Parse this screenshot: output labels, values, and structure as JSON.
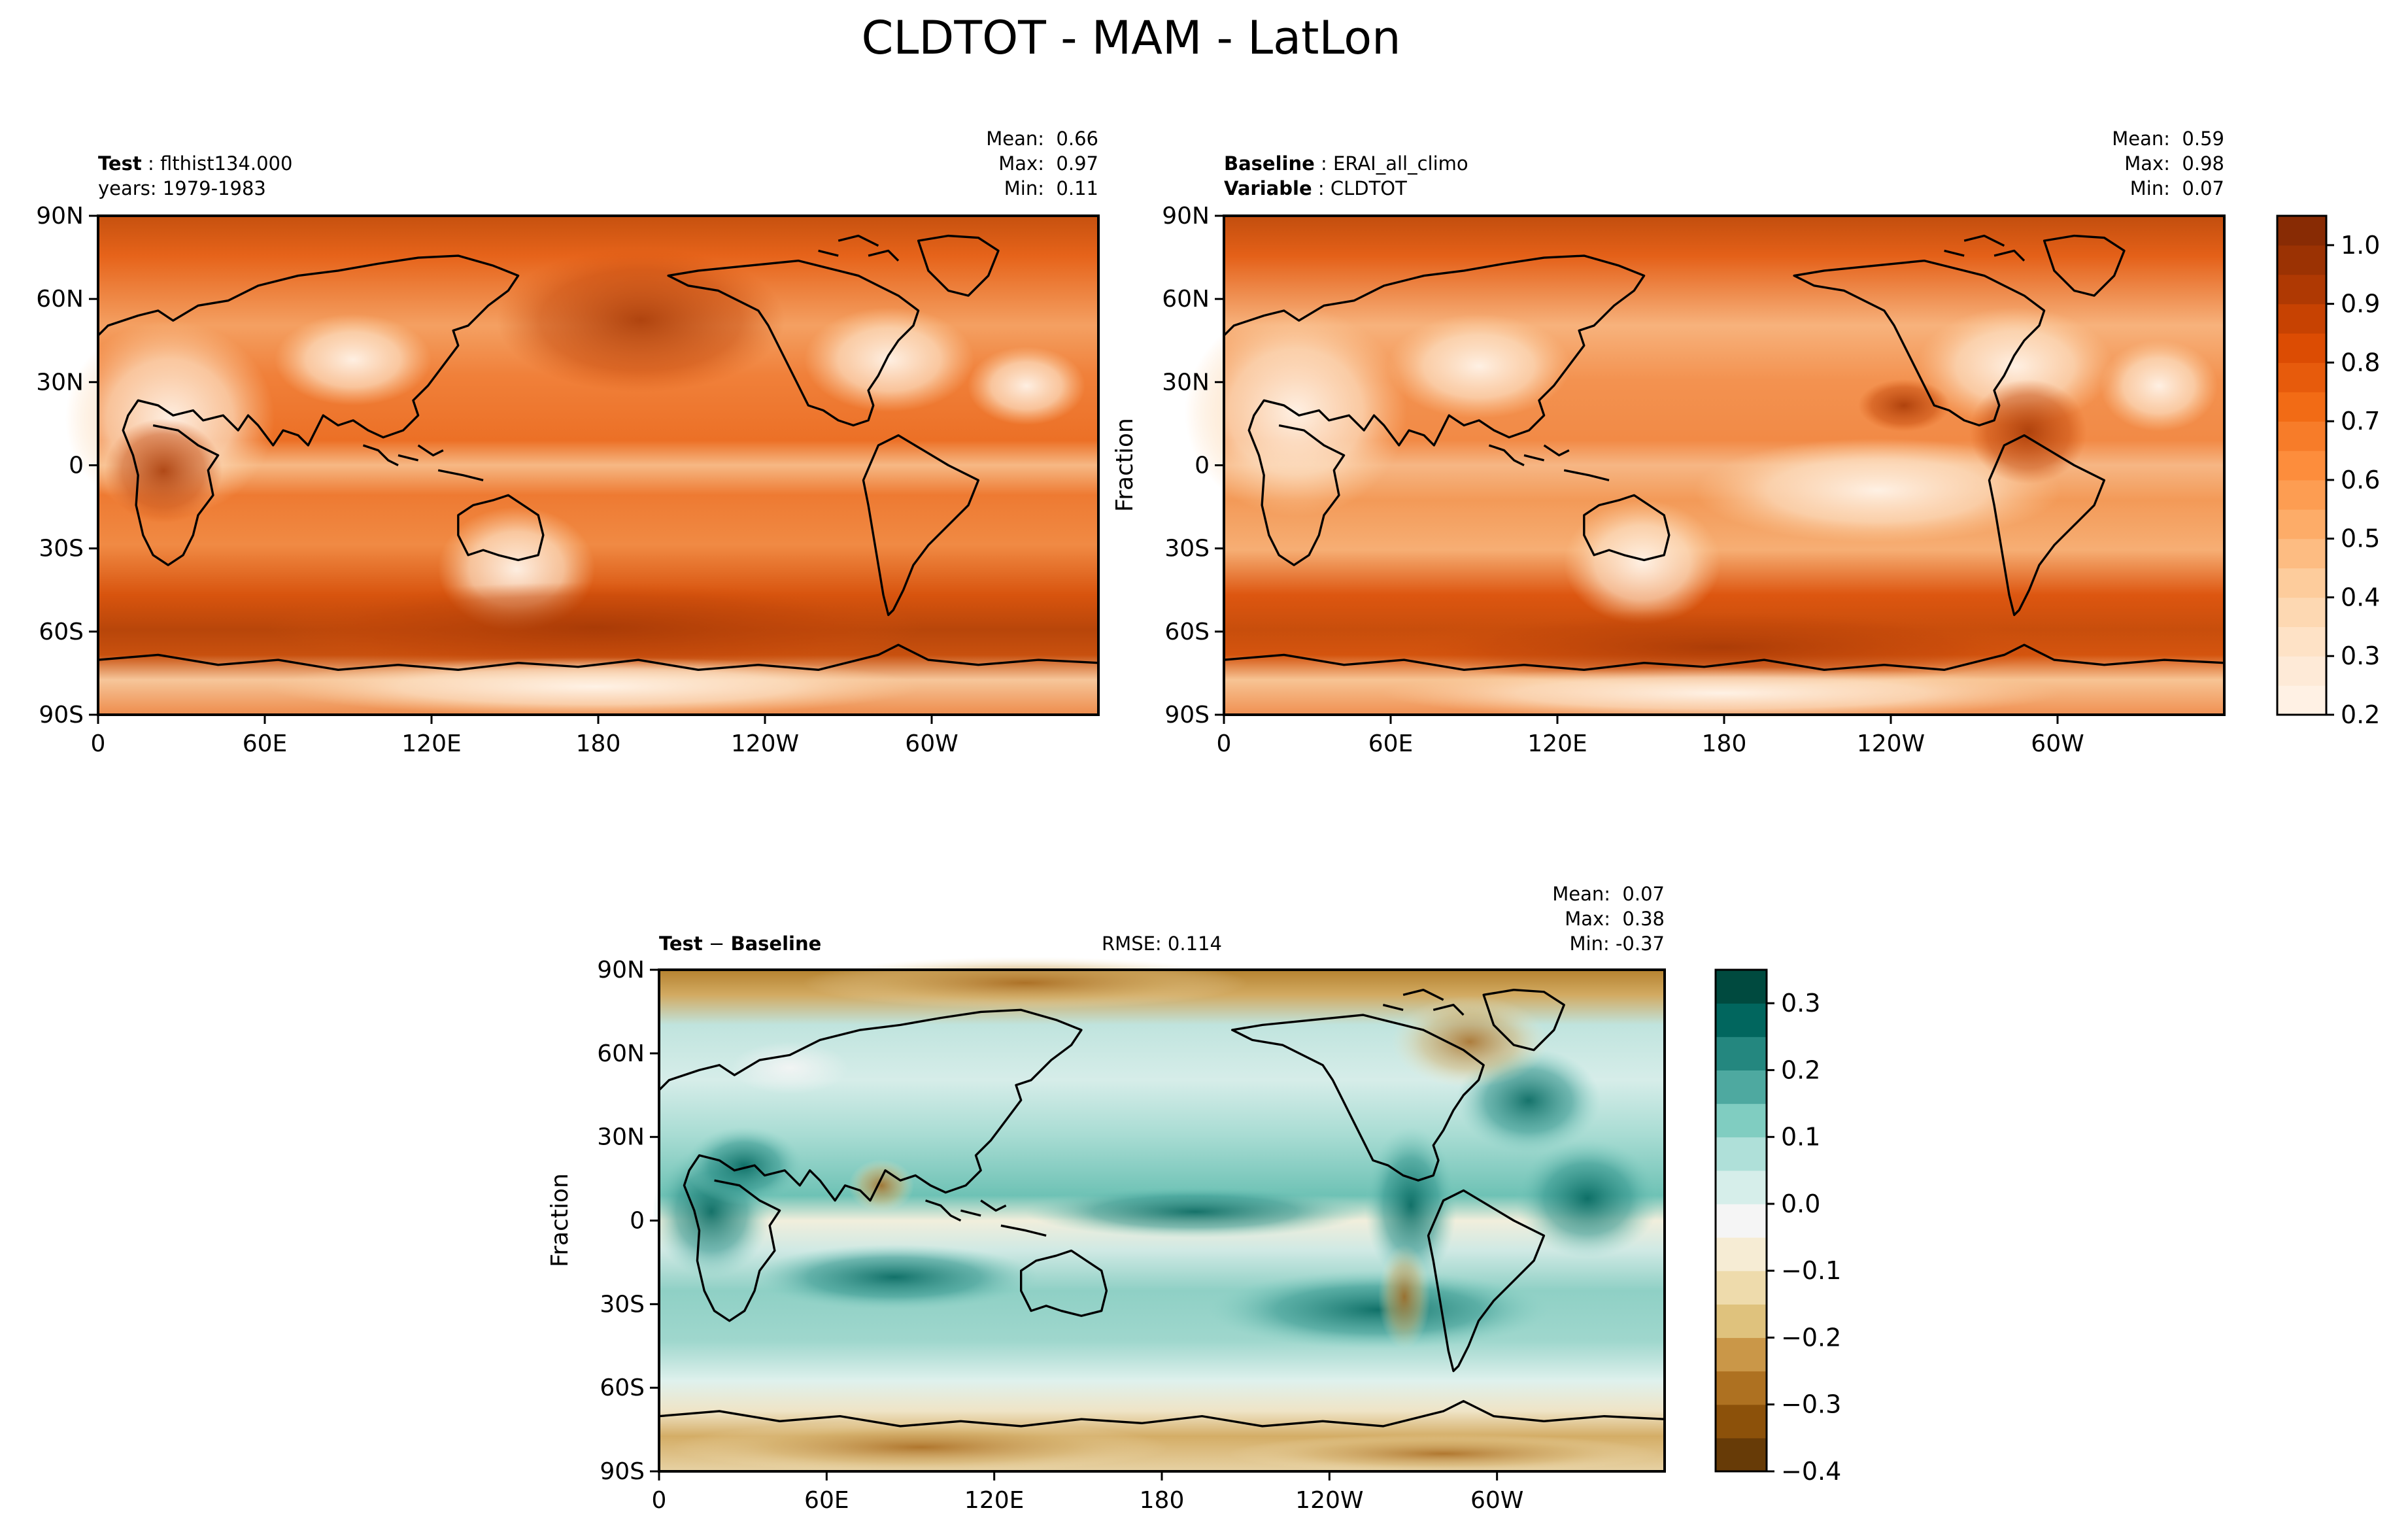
{
  "figure": {
    "title": "CLDTOT - MAM - LatLon"
  },
  "colors": {
    "orange_ramp": [
      "#fff5eb",
      "#fee6ce",
      "#fdd0a2",
      "#fdae6b",
      "#fd8d3c",
      "#f16913",
      "#d94801",
      "#a63603",
      "#7f2704"
    ],
    "brbg_ramp": [
      "#543005",
      "#8c510a",
      "#bf812d",
      "#dfc27d",
      "#f6e8c3",
      "#f5f5f5",
      "#c7eae5",
      "#80cdc1",
      "#35978f",
      "#01665e",
      "#003c30"
    ],
    "coastline": "#000000"
  },
  "panels": [
    {
      "id": "test",
      "left_label_key": "Test",
      "left_label_value": "flthist134.000",
      "left_label2": "years: 1979-1983",
      "left_label2_key": "",
      "left_label2_value": "",
      "stats": [
        "Mean:  0.66",
        "Max:  0.97",
        "Min:  0.11"
      ],
      "ylabel": "",
      "x_ticks": [
        "0",
        "60E",
        "120E",
        "180",
        "120W",
        "60W"
      ],
      "y_ticks": [
        "90N",
        "60N",
        "30N",
        "0",
        "30S",
        "60S",
        "90S"
      ]
    },
    {
      "id": "baseline",
      "left_label_key": "Baseline",
      "left_label_value": "ERAI_all_climo",
      "left_label2": "",
      "left_label2_key": "Variable",
      "left_label2_value": "CLDTOT",
      "stats": [
        "Mean:  0.59",
        "Max:  0.98",
        "Min:  0.07"
      ],
      "ylabel": "Fraction",
      "x_ticks": [
        "0",
        "60E",
        "120E",
        "180",
        "120W",
        "60W"
      ],
      "y_ticks": [
        "90N",
        "60N",
        "30N",
        "0",
        "30S",
        "60S",
        "90S"
      ]
    },
    {
      "id": "diff",
      "left_label_key": "Test",
      "left_label_sep": "−",
      "left_label_value": "Baseline",
      "center_label": "RMSE: 0.114",
      "stats": [
        "Mean:  0.07",
        "Max:  0.38",
        "Min: -0.37"
      ],
      "ylabel": "Fraction",
      "x_ticks": [
        "0",
        "60E",
        "120E",
        "180",
        "120W",
        "60W"
      ],
      "y_ticks": [
        "90N",
        "60N",
        "30N",
        "0",
        "30S",
        "60S",
        "90S"
      ]
    }
  ],
  "colorbars": {
    "top": {
      "ticks": [
        "1.0",
        "0.9",
        "0.8",
        "0.7",
        "0.6",
        "0.5",
        "0.4",
        "0.3",
        "0.2"
      ],
      "range": [
        0.2,
        1.05
      ]
    },
    "diff": {
      "ticks": [
        "0.3",
        "0.2",
        "0.1",
        "0.0",
        "−0.1",
        "−0.2",
        "−0.3",
        "−0.4"
      ],
      "range": [
        -0.4,
        0.35
      ]
    }
  },
  "chart_data": [
    {
      "type": "heatmap",
      "title": "Test: flthist134.000",
      "subtitle": "years: 1979-1983",
      "variable": "CLDTOT",
      "season": "MAM",
      "units": "Fraction",
      "x": [
        "0",
        "60E",
        "120E",
        "180",
        "120W",
        "60W"
      ],
      "y": [
        "90N",
        "60N",
        "30N",
        "0",
        "30S",
        "60S",
        "90S"
      ],
      "mean": 0.66,
      "max": 0.97,
      "min": 0.11,
      "colorbar_range": [
        0.2,
        1.05
      ]
    },
    {
      "type": "heatmap",
      "title": "Baseline: ERAI_all_climo",
      "variable": "CLDTOT",
      "season": "MAM",
      "units": "Fraction",
      "x": [
        "0",
        "60E",
        "120E",
        "180",
        "120W",
        "60W"
      ],
      "y": [
        "90N",
        "60N",
        "30N",
        "0",
        "30S",
        "60S",
        "90S"
      ],
      "mean": 0.59,
      "max": 0.98,
      "min": 0.07,
      "colorbar_range": [
        0.2,
        1.05
      ]
    },
    {
      "type": "heatmap",
      "title": "Test − Baseline",
      "units": "Fraction",
      "rmse": 0.114,
      "x": [
        "0",
        "60E",
        "120E",
        "180",
        "120W",
        "60W"
      ],
      "y": [
        "90N",
        "60N",
        "30N",
        "0",
        "30S",
        "60S",
        "90S"
      ],
      "mean": 0.07,
      "max": 0.38,
      "min": -0.37,
      "colorbar_range": [
        -0.4,
        0.35
      ]
    }
  ]
}
